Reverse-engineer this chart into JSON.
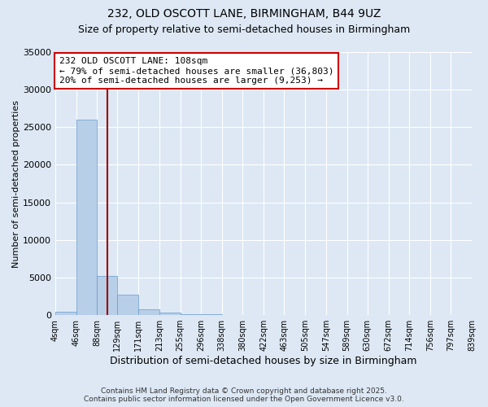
{
  "title1": "232, OLD OSCOTT LANE, BIRMINGHAM, B44 9UZ",
  "title2": "Size of property relative to semi-detached houses in Birmingham",
  "xlabel": "Distribution of semi-detached houses by size in Birmingham",
  "ylabel": "Number of semi-detached properties",
  "annotation_line1": "232 OLD OSCOTT LANE: 108sqm",
  "annotation_line2": "← 79% of semi-detached houses are smaller (36,803)",
  "annotation_line3": "20% of semi-detached houses are larger (9,253) →",
  "property_size": 108,
  "footer1": "Contains HM Land Registry data © Crown copyright and database right 2025.",
  "footer2": "Contains public sector information licensed under the Open Government Licence v3.0.",
  "bin_edges": [
    4,
    46,
    88,
    129,
    171,
    213,
    255,
    296,
    338,
    380,
    422,
    463,
    505,
    547,
    589,
    630,
    672,
    714,
    756,
    797,
    839
  ],
  "bar_heights": [
    400,
    26000,
    5200,
    2700,
    800,
    350,
    150,
    80,
    50,
    30,
    18,
    12,
    8,
    5,
    3,
    2,
    1,
    1,
    0,
    0
  ],
  "bar_color": "#b8cfe8",
  "bar_edge_color": "#6699cc",
  "line_color": "#990000",
  "annotation_box_facecolor": "#ffffff",
  "annotation_box_edgecolor": "#cc0000",
  "background_color": "#dde8f4",
  "grid_color": "#ffffff",
  "ylim": [
    0,
    35000
  ],
  "yticks": [
    0,
    5000,
    10000,
    15000,
    20000,
    25000,
    30000,
    35000
  ],
  "title1_fontsize": 10,
  "title2_fontsize": 9,
  "xlabel_fontsize": 9,
  "ylabel_fontsize": 8,
  "annotation_fontsize": 8,
  "footer_fontsize": 6.5
}
